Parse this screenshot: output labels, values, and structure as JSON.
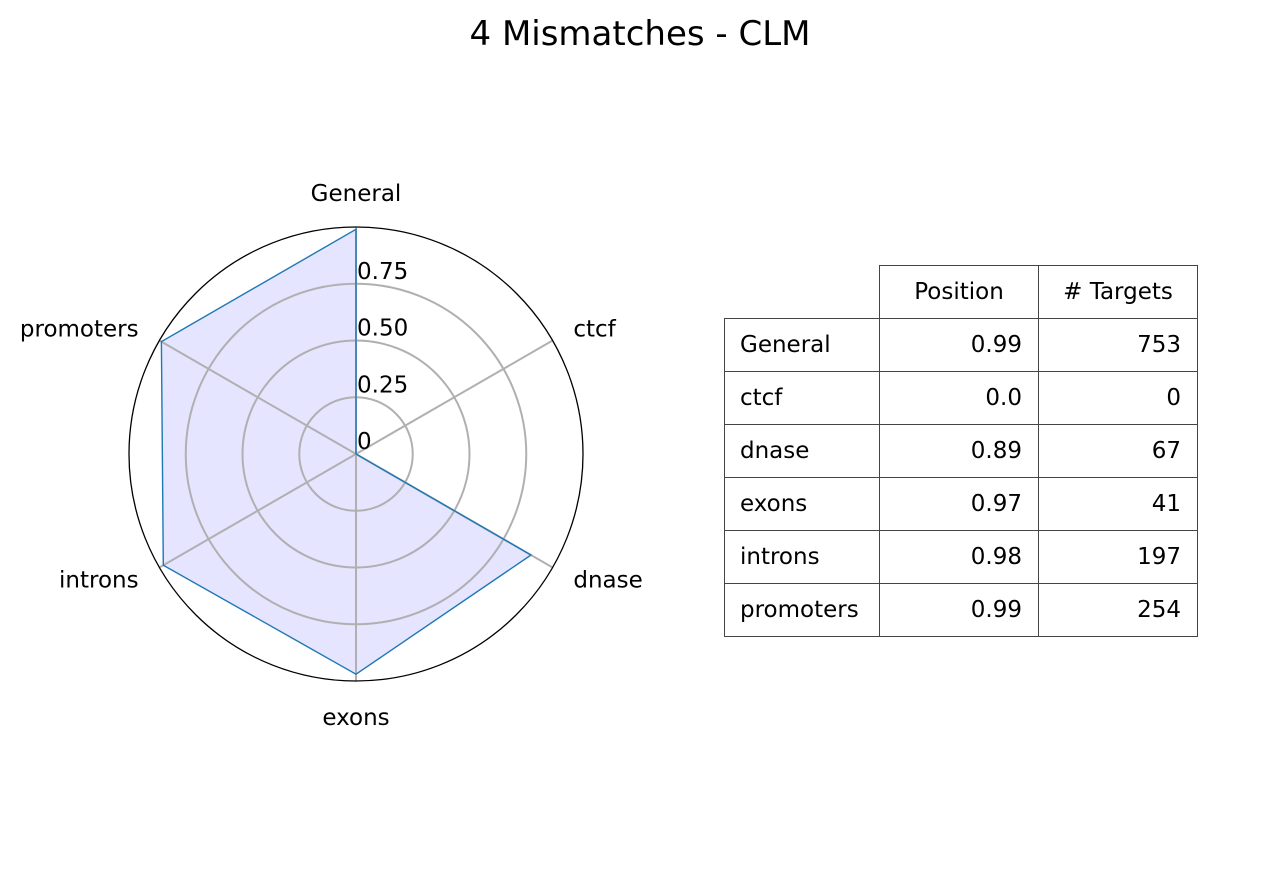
{
  "chart_data": [
    {
      "type": "radar",
      "title": "4 Mismatches - CLM",
      "categories": [
        "General",
        "ctcf",
        "dnase",
        "exons",
        "introns",
        "promoters"
      ],
      "series": [
        {
          "values": [
            0.99,
            0.0,
            0.89,
            0.97,
            0.98,
            0.99
          ]
        }
      ],
      "rlim": [
        0,
        1
      ],
      "radial_ticks": [
        0,
        0.25,
        0.5,
        0.75
      ],
      "radial_tick_labels": [
        "0",
        "0.25",
        "0.50",
        "0.75"
      ],
      "grid": true,
      "colors": {
        "line": "#1f77b4",
        "fill": "#e5e5ff",
        "grid": "#b0b0b0",
        "outline": "#000000"
      }
    },
    {
      "type": "table",
      "columns": [
        "Position",
        "# Targets"
      ],
      "rows": [
        {
          "label": "General",
          "position": "0.99",
          "targets": "753"
        },
        {
          "label": "ctcf",
          "position": "0.0",
          "targets": "0"
        },
        {
          "label": "dnase",
          "position": "0.89",
          "targets": "67"
        },
        {
          "label": "exons",
          "position": "0.97",
          "targets": "41"
        },
        {
          "label": "introns",
          "position": "0.98",
          "targets": "197"
        },
        {
          "label": "promoters",
          "position": "0.99",
          "targets": "254"
        }
      ]
    }
  ]
}
